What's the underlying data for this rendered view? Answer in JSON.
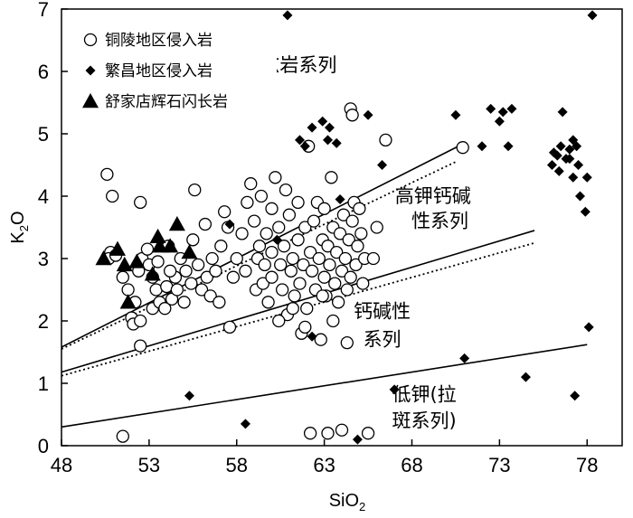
{
  "chart_data": {
    "type": "scatter",
    "xlabel": "SiO",
    "xlabel_sub": "2",
    "ylabel": "K",
    "ylabel_sub": "2",
    "ylabel_tail": "O",
    "xlim": [
      48,
      80
    ],
    "ylim": [
      0,
      7
    ],
    "xticks": [
      48,
      53,
      58,
      63,
      68,
      73,
      78
    ],
    "yticks": [
      0,
      1,
      2,
      3,
      4,
      5,
      6,
      7
    ],
    "grid": false,
    "legend_position": "top-left",
    "series": [
      {
        "name": "铜陵地区侵入岩",
        "marker": "open-circle",
        "points": [
          [
            51.5,
            0.15
          ],
          [
            50.6,
            4.35
          ],
          [
            50.9,
            4.0
          ],
          [
            50.8,
            3.1
          ],
          [
            50.7,
            3.0
          ],
          [
            51.1,
            3.05
          ],
          [
            51.5,
            2.7
          ],
          [
            51.8,
            2.5
          ],
          [
            52.2,
            2.3
          ],
          [
            52.0,
            2.05
          ],
          [
            52.1,
            1.95
          ],
          [
            52.5,
            2.0
          ],
          [
            52.5,
            1.6
          ],
          [
            52.5,
            3.9
          ],
          [
            52.4,
            2.8
          ],
          [
            52.6,
            3.0
          ],
          [
            52.9,
            3.15
          ],
          [
            53.0,
            2.9
          ],
          [
            53.2,
            2.7
          ],
          [
            53.4,
            2.5
          ],
          [
            53.5,
            2.95
          ],
          [
            53.2,
            2.2
          ],
          [
            53.6,
            2.3
          ],
          [
            53.9,
            2.2
          ],
          [
            54.0,
            2.55
          ],
          [
            54.3,
            2.35
          ],
          [
            54.5,
            2.7
          ],
          [
            54.1,
            3.2
          ],
          [
            54.8,
            3.0
          ],
          [
            54.2,
            2.8
          ],
          [
            54.6,
            2.5
          ],
          [
            55.0,
            2.3
          ],
          [
            55.1,
            2.8
          ],
          [
            55.4,
            2.6
          ],
          [
            55.5,
            3.3
          ],
          [
            55.6,
            4.1
          ],
          [
            55.8,
            2.9
          ],
          [
            56.0,
            2.5
          ],
          [
            56.3,
            2.7
          ],
          [
            56.6,
            3.0
          ],
          [
            56.5,
            2.4
          ],
          [
            56.8,
            2.8
          ],
          [
            57.1,
            3.2
          ],
          [
            57.0,
            2.3
          ],
          [
            57.5,
            3.5
          ],
          [
            57.6,
            1.9
          ],
          [
            57.8,
            2.7
          ],
          [
            58.0,
            3.0
          ],
          [
            58.3,
            3.4
          ],
          [
            58.5,
            2.8
          ],
          [
            58.6,
            3.9
          ],
          [
            58.8,
            4.2
          ],
          [
            59.0,
            3.6
          ],
          [
            59.1,
            2.5
          ],
          [
            59.2,
            3.0
          ],
          [
            59.3,
            3.2
          ],
          [
            59.4,
            4.0
          ],
          [
            59.5,
            2.6
          ],
          [
            59.6,
            2.9
          ],
          [
            59.7,
            3.4
          ],
          [
            59.8,
            2.3
          ],
          [
            60.0,
            3.1
          ],
          [
            60.0,
            2.7
          ],
          [
            60.2,
            4.3
          ],
          [
            60.4,
            3.5
          ],
          [
            60.5,
            2.9
          ],
          [
            60.6,
            2.5
          ],
          [
            60.7,
            3.2
          ],
          [
            60.8,
            4.1
          ],
          [
            60.9,
            2.1
          ],
          [
            61.0,
            3.7
          ],
          [
            61.1,
            2.8
          ],
          [
            61.2,
            3.0
          ],
          [
            61.3,
            2.4
          ],
          [
            61.5,
            3.3
          ],
          [
            61.6,
            2.6
          ],
          [
            61.7,
            1.8
          ],
          [
            61.8,
            2.9
          ],
          [
            61.9,
            3.5
          ],
          [
            62.0,
            2.2
          ],
          [
            62.1,
            4.8
          ],
          [
            62.2,
            3.1
          ],
          [
            62.3,
            2.8
          ],
          [
            62.4,
            3.6
          ],
          [
            62.5,
            2.5
          ],
          [
            62.6,
            3.9
          ],
          [
            62.7,
            3.0
          ],
          [
            62.8,
            1.7
          ],
          [
            62.9,
            3.3
          ],
          [
            63.0,
            2.7
          ],
          [
            63.0,
            3.8
          ],
          [
            63.1,
            2.4
          ],
          [
            63.2,
            3.2
          ],
          [
            63.3,
            2.9
          ],
          [
            63.4,
            4.3
          ],
          [
            63.5,
            3.5
          ],
          [
            63.6,
            2.6
          ],
          [
            63.7,
            3.1
          ],
          [
            63.8,
            2.3
          ],
          [
            63.9,
            3.4
          ],
          [
            64.0,
            2.8
          ],
          [
            64.1,
            3.7
          ],
          [
            64.2,
            3.0
          ],
          [
            64.3,
            2.5
          ],
          [
            64.4,
            3.3
          ],
          [
            64.5,
            2.7
          ],
          [
            64.6,
            3.6
          ],
          [
            64.7,
            3.9
          ],
          [
            64.8,
            2.9
          ],
          [
            64.9,
            3.2
          ],
          [
            65.0,
            3.8
          ],
          [
            65.1,
            3.4
          ],
          [
            65.2,
            2.6
          ],
          [
            65.3,
            3.0
          ],
          [
            64.5,
            5.4
          ],
          [
            64.6,
            5.3
          ],
          [
            66.5,
            4.9
          ],
          [
            62.2,
            0.2
          ],
          [
            64.0,
            0.25
          ],
          [
            65.5,
            0.2
          ],
          [
            63.2,
            0.2
          ],
          [
            64.3,
            1.65
          ],
          [
            61.9,
            1.9
          ],
          [
            60.4,
            2.0
          ],
          [
            61.2,
            2.2
          ],
          [
            62.9,
            2.4
          ],
          [
            63.5,
            2.0
          ],
          [
            61.5,
            3.9
          ],
          [
            60.0,
            3.8
          ],
          [
            70.9,
            4.78
          ],
          [
            56.2,
            3.55
          ],
          [
            57.3,
            3.75
          ],
          [
            65.8,
            3.0
          ],
          [
            66.0,
            3.5
          ]
        ]
      },
      {
        "name": "繁昌地区侵入岩",
        "marker": "filled-diamond",
        "points": [
          [
            60.9,
            6.9
          ],
          [
            61.6,
            4.9
          ],
          [
            61.9,
            4.8
          ],
          [
            62.3,
            5.1
          ],
          [
            62.9,
            5.2
          ],
          [
            63.2,
            4.9
          ],
          [
            63.3,
            5.1
          ],
          [
            63.7,
            4.85
          ],
          [
            65.5,
            5.3
          ],
          [
            66.3,
            4.5
          ],
          [
            63.9,
            3.95
          ],
          [
            60.3,
            3.3
          ],
          [
            57.6,
            3.55
          ],
          [
            62.3,
            1.75
          ],
          [
            70.5,
            5.3
          ],
          [
            71.0,
            1.4
          ],
          [
            72.0,
            4.8
          ],
          [
            72.5,
            5.4
          ],
          [
            73.0,
            5.2
          ],
          [
            73.2,
            5.35
          ],
          [
            73.5,
            4.8
          ],
          [
            73.7,
            5.4
          ],
          [
            74.5,
            1.1
          ],
          [
            76.0,
            4.5
          ],
          [
            76.1,
            4.7
          ],
          [
            76.3,
            4.65
          ],
          [
            76.5,
            4.8
          ],
          [
            76.6,
            5.35
          ],
          [
            76.8,
            4.6
          ],
          [
            77.0,
            4.75
          ],
          [
            77.2,
            4.9
          ],
          [
            77.4,
            4.8
          ],
          [
            77.5,
            4.5
          ],
          [
            77.2,
            4.3
          ],
          [
            77.6,
            4.0
          ],
          [
            78.0,
            4.3
          ],
          [
            77.9,
            3.75
          ],
          [
            78.1,
            1.9
          ],
          [
            77.3,
            0.8
          ],
          [
            78.3,
            6.9
          ],
          [
            55.3,
            0.8
          ],
          [
            58.5,
            0.35
          ],
          [
            64.9,
            0.1
          ],
          [
            67.0,
            0.9
          ],
          [
            76.4,
            4.4
          ],
          [
            77.0,
            4.6
          ]
        ]
      },
      {
        "name": "舒家店辉石闪长岩",
        "marker": "filled-triangle",
        "points": [
          [
            50.4,
            3.0
          ],
          [
            51.2,
            3.15
          ],
          [
            51.6,
            2.9
          ],
          [
            52.3,
            2.95
          ],
          [
            53.2,
            2.75
          ],
          [
            53.5,
            3.35
          ],
          [
            53.6,
            3.2
          ],
          [
            54.2,
            3.2
          ],
          [
            54.6,
            3.55
          ],
          [
            55.3,
            3.1
          ],
          [
            51.8,
            2.3
          ]
        ]
      }
    ],
    "boundaries": [
      {
        "style": "solid",
        "x": [
          48,
          71
        ],
        "y": [
          1.58,
          4.85
        ]
      },
      {
        "style": "dotted",
        "x": [
          48,
          70.5
        ],
        "y": [
          1.55,
          4.55
        ]
      },
      {
        "style": "solid",
        "x": [
          48,
          75
        ],
        "y": [
          1.18,
          3.45
        ]
      },
      {
        "style": "dotted",
        "x": [
          48,
          75
        ],
        "y": [
          1.12,
          3.25
        ]
      },
      {
        "style": "solid",
        "x": [
          48,
          78
        ],
        "y": [
          0.3,
          1.62
        ]
      }
    ],
    "annotations": [
      {
        "text": "钾玄岩系列",
        "x": 61.0,
        "y": 6.0
      },
      {
        "text": "高钾钙碱",
        "x": 69.2,
        "y": 3.9
      },
      {
        "text": "性系列",
        "x": 69.6,
        "y": 3.5
      },
      {
        "text": "钙碱性",
        "x": 66.3,
        "y": 2.05
      },
      {
        "text": "系列",
        "x": 66.3,
        "y": 1.6
      },
      {
        "text": "低钾(拉",
        "x": 68.7,
        "y": 0.72
      },
      {
        "text": "斑系列)",
        "x": 68.7,
        "y": 0.3
      }
    ]
  }
}
